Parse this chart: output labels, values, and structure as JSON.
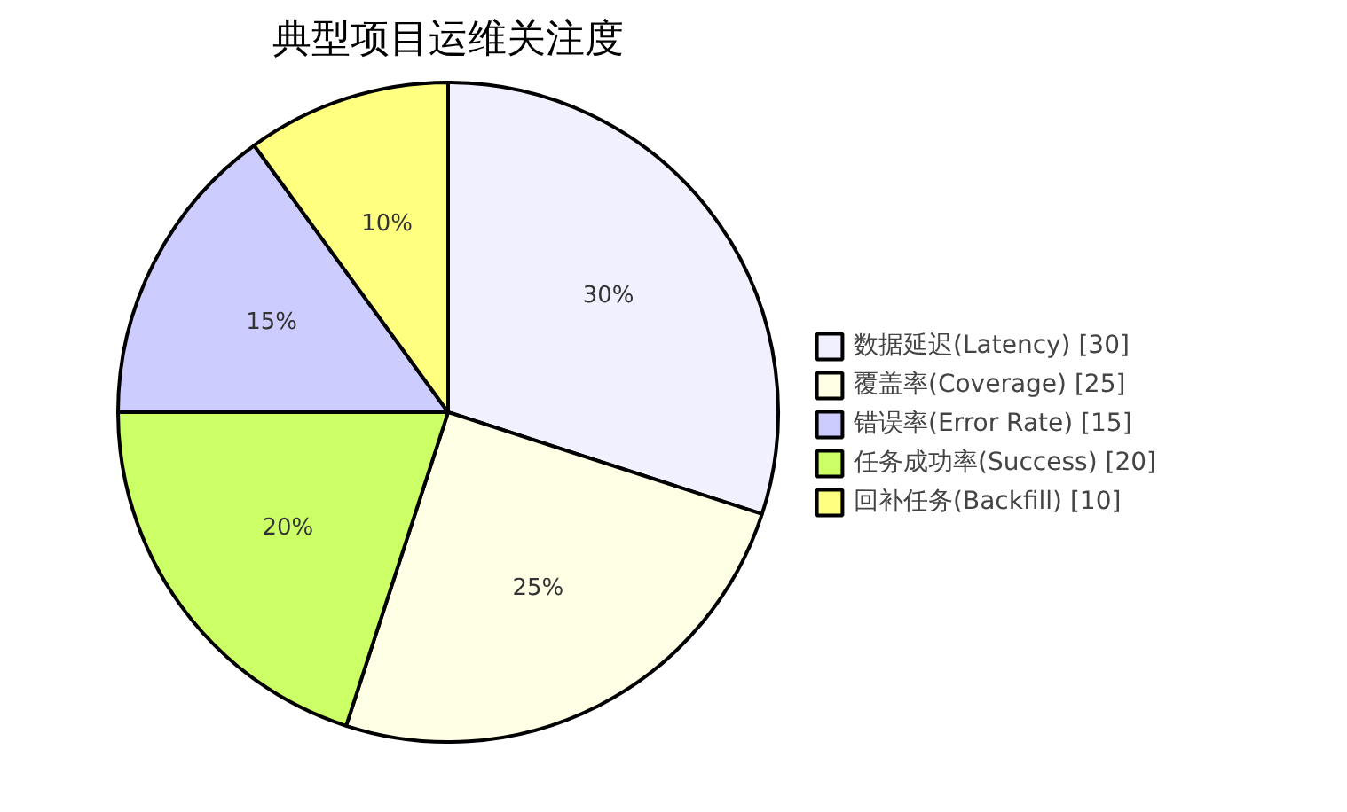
{
  "chart_data": {
    "type": "pie",
    "title": "典型项目运维关注度",
    "categories": [
      "数据延迟(Latency) [30]",
      "覆盖率(Coverage) [25]",
      "错误率(Error Rate) [15]",
      "任务成功率(Success) [20]",
      "回补任务(Backfill) [10]"
    ],
    "values": [
      30,
      25,
      15,
      20,
      10
    ],
    "value_labels": [
      "30%",
      "25%",
      "15%",
      "20%",
      "10%"
    ],
    "colors": [
      "#f0f0ff",
      "#ffffe6",
      "#ccccff",
      "#ccff66",
      "#ffff80"
    ],
    "legend": "right"
  }
}
